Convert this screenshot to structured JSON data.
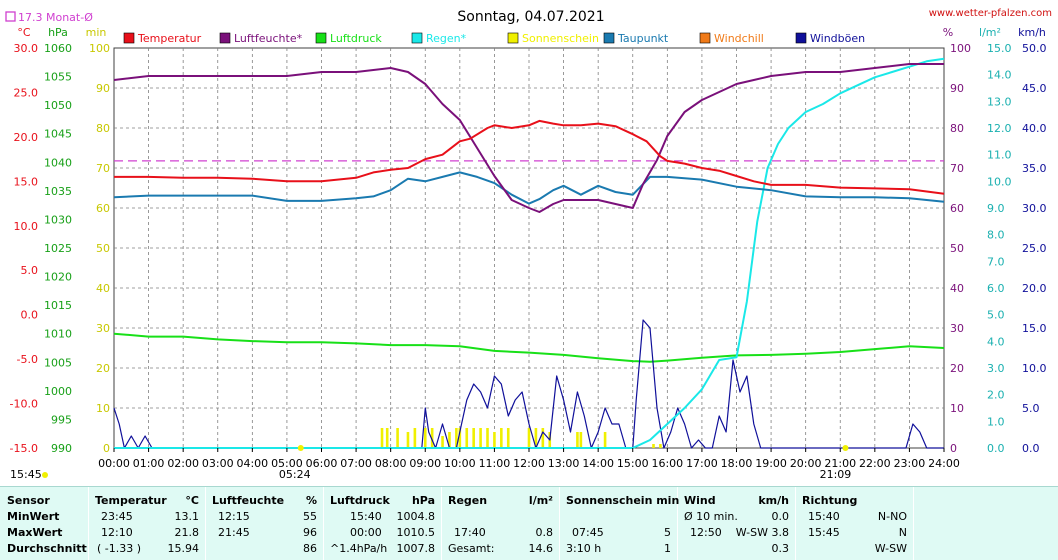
{
  "title": "Sonntag, 04.07.2021",
  "watermark": "www.wetter-pfalzen.com",
  "monthly_note": "17.3 Monat-Ø",
  "colors": {
    "temperature": "#e8101a",
    "humidity": "#7a107a",
    "pressure": "#18e018",
    "rain": "#1ae8e8",
    "sunshine": "#f0f000",
    "dewpoint": "#1a7ab0",
    "windchill": "#f07a18",
    "gusts": "#10109a",
    "grid": "#808080",
    "monthly_avg": "#d040d0"
  },
  "legend": [
    {
      "label": "Temperatur",
      "color": "#e8101a"
    },
    {
      "label": "Luftfeuchte*",
      "color": "#7a107a"
    },
    {
      "label": "Luftdruck",
      "color": "#18e018"
    },
    {
      "label": "Regen*",
      "color": "#1ae8e8"
    },
    {
      "label": "Sonnenschein",
      "color": "#f0f000"
    },
    {
      "label": "Taupunkt",
      "color": "#1a7ab0"
    },
    {
      "label": "Windchill",
      "color": "#f07a18"
    },
    {
      "label": "Windböen",
      "color": "#10109a"
    }
  ],
  "chart_data": {
    "type": "line",
    "x_ticks": [
      "00:00",
      "01:00",
      "02:00",
      "03:00",
      "04:00",
      "05:00",
      "06:00",
      "07:00",
      "08:00",
      "09:00",
      "10:00",
      "11:00",
      "12:00",
      "13:00",
      "14:00",
      "15:00",
      "16:00",
      "17:00",
      "18:00",
      "19:00",
      "20:00",
      "21:00",
      "22:00",
      "23:00",
      "24:00"
    ],
    "sunrise": "05:24",
    "sunset": "21:09",
    "start_label": "15:45",
    "axes": {
      "temperature": {
        "unit": "°C",
        "range": [
          -15,
          30
        ],
        "ticks": [
          "30.0",
          "25.0",
          "20.0",
          "15.0",
          "10.0",
          "5.0",
          "0.0",
          "-5.0",
          "-10.0",
          "-15.0"
        ]
      },
      "pressure": {
        "unit": "hPa",
        "range": [
          990,
          1060
        ],
        "ticks": [
          "1060",
          "1055",
          "1050",
          "1045",
          "1040",
          "1035",
          "1030",
          "1025",
          "1020",
          "1015",
          "1010",
          "1005",
          "1000",
          "995",
          "990"
        ]
      },
      "sun_min": {
        "unit": "min",
        "range": [
          0,
          100
        ],
        "ticks": [
          "100",
          "90",
          "80",
          "70",
          "60",
          "50",
          "40",
          "30",
          "20",
          "10",
          "0"
        ]
      },
      "humidity": {
        "unit": "%",
        "range": [
          0,
          100
        ],
        "ticks": [
          "100",
          "90",
          "80",
          "70",
          "60",
          "50",
          "40",
          "30",
          "20",
          "10",
          "0"
        ]
      },
      "rain": {
        "unit": "l/m²",
        "range": [
          0,
          15
        ],
        "ticks": [
          "15.0",
          "14.0",
          "13.0",
          "12.0",
          "11.0",
          "10.0",
          "9.0",
          "8.0",
          "7.0",
          "6.0",
          "5.0",
          "4.0",
          "3.0",
          "2.0",
          "1.0",
          "0.0"
        ]
      },
      "wind": {
        "unit": "km/h",
        "range": [
          0,
          50
        ],
        "ticks": [
          "50.0",
          "45.0",
          "40.0",
          "35.0",
          "30.0",
          "25.0",
          "20.0",
          "15.0",
          "10.0",
          "5.0",
          "0.0"
        ]
      }
    },
    "monthly_average_temperature": 17.3,
    "series": [
      {
        "name": "Temperatur",
        "axis": "temperature",
        "color": "#e8101a",
        "x": [
          0,
          1,
          2,
          3,
          4,
          5,
          6,
          7,
          7.5,
          8,
          8.5,
          9,
          9.5,
          10,
          10.3,
          10.8,
          11,
          11.5,
          12,
          12.3,
          12.7,
          13,
          13.5,
          14,
          14.5,
          15,
          15.4,
          15.8,
          16,
          16.5,
          17,
          17.5,
          18,
          18.5,
          19,
          20,
          21,
          22,
          23,
          24
        ],
        "y": [
          15.5,
          15.5,
          15.4,
          15.4,
          15.3,
          15,
          15,
          15.4,
          16,
          16.3,
          16.5,
          17.5,
          18,
          19.5,
          19.8,
          21,
          21.3,
          21,
          21.3,
          21.8,
          21.5,
          21.3,
          21.3,
          21.5,
          21.2,
          20.3,
          19.5,
          17.8,
          17.3,
          17,
          16.5,
          16.2,
          15.6,
          15,
          14.6,
          14.6,
          14.3,
          14.2,
          14.1,
          13.6
        ]
      },
      {
        "name": "Luftfeuchte*",
        "axis": "humidity",
        "color": "#7a107a",
        "x": [
          0,
          1,
          2,
          3,
          4,
          5,
          6,
          7,
          7.5,
          8,
          8.5,
          9,
          9.5,
          10,
          10.5,
          11,
          11.5,
          12,
          12.3,
          12.7,
          13,
          13.5,
          14,
          14.5,
          15,
          15.3,
          15.7,
          16,
          16.5,
          17,
          17.5,
          18,
          18.5,
          19,
          20,
          21,
          22,
          23,
          24
        ],
        "y": [
          92,
          93,
          93,
          93,
          93,
          93,
          94,
          94,
          94.5,
          95,
          94,
          91,
          86,
          82,
          75,
          68,
          62,
          60,
          59,
          61,
          62,
          62,
          62,
          61,
          60,
          66,
          72,
          78,
          84,
          87,
          89,
          91,
          92,
          93,
          94,
          94,
          95,
          96,
          96
        ]
      },
      {
        "name": "Luftdruck",
        "axis": "pressure",
        "color": "#18e018",
        "x": [
          0,
          1,
          2,
          3,
          4,
          5,
          6,
          7,
          8,
          9,
          10,
          11,
          12,
          13,
          14,
          15,
          15.5,
          16,
          17,
          18,
          19,
          20,
          21,
          22,
          23,
          24
        ],
        "y": [
          1010,
          1009.5,
          1009.5,
          1009,
          1008.7,
          1008.5,
          1008.5,
          1008.3,
          1008,
          1008,
          1007.8,
          1007,
          1006.7,
          1006.3,
          1005.7,
          1005.2,
          1005.1,
          1005.3,
          1005.8,
          1006.2,
          1006.3,
          1006.5,
          1006.8,
          1007.3,
          1007.8,
          1007.5
        ]
      },
      {
        "name": "Taupunkt",
        "axis": "temperature",
        "color": "#1a7ab0",
        "x": [
          0,
          1,
          2,
          3,
          4,
          5,
          6,
          7,
          7.5,
          8,
          8.5,
          9,
          9.5,
          10,
          10.5,
          11,
          11.5,
          12,
          12.3,
          12.7,
          13,
          13.5,
          14,
          14.5,
          15,
          15.5,
          16,
          17,
          18,
          19,
          20,
          21,
          22,
          23,
          24
        ],
        "y": [
          13.2,
          13.4,
          13.4,
          13.4,
          13.4,
          12.8,
          12.8,
          13.1,
          13.3,
          14,
          15.3,
          15,
          15.5,
          16,
          15.5,
          14.8,
          13.5,
          12.5,
          13,
          14,
          14.5,
          13.5,
          14.5,
          13.8,
          13.5,
          15.5,
          15.5,
          15.2,
          14.4,
          14,
          13.3,
          13.2,
          13.2,
          13.1,
          12.7
        ]
      },
      {
        "name": "Regen*",
        "axis": "rain",
        "color": "#1ae8e8",
        "x": [
          0,
          15,
          15.5,
          16,
          16.5,
          17,
          17.5,
          18,
          18.3,
          18.6,
          18.9,
          19.2,
          19.5,
          20,
          20.5,
          21,
          21.5,
          22,
          22.5,
          23,
          23.5,
          24
        ],
        "y": [
          0,
          0,
          0.3,
          0.9,
          1.5,
          2.2,
          3.3,
          3.4,
          5.5,
          8.5,
          10.5,
          11.4,
          12,
          12.6,
          12.9,
          13.3,
          13.6,
          13.9,
          14.1,
          14.3,
          14.5,
          14.6
        ]
      },
      {
        "name": "Windböen",
        "axis": "wind",
        "color": "#10109a",
        "x": [
          0,
          0.15,
          0.3,
          0.5,
          0.7,
          0.9,
          1.1,
          8.9,
          9.0,
          9.1,
          9.3,
          9.5,
          9.7,
          9.9,
          10.0,
          10.2,
          10.4,
          10.6,
          10.8,
          11.0,
          11.2,
          11.4,
          11.6,
          11.8,
          12.0,
          12.2,
          12.4,
          12.6,
          12.8,
          13.0,
          13.2,
          13.4,
          13.6,
          13.8,
          14.0,
          14.2,
          14.4,
          14.6,
          14.8,
          15.0,
          15.1,
          15.3,
          15.5,
          15.7,
          15.9,
          16.1,
          16.3,
          16.5,
          16.7,
          16.9,
          17.1,
          17.3,
          17.5,
          17.7,
          17.9,
          18.1,
          18.3,
          18.5,
          18.7,
          18.9,
          22.9,
          23.1,
          23.3,
          23.5,
          24
        ],
        "y": [
          5,
          3,
          0,
          1.5,
          0,
          1.5,
          0,
          0,
          5,
          2,
          0,
          3,
          0,
          0,
          2,
          6,
          8,
          7,
          5,
          9,
          8,
          4,
          6,
          7,
          3,
          0,
          2,
          1,
          9,
          6,
          2,
          7,
          4,
          0,
          2,
          5,
          3,
          3,
          0,
          0,
          6,
          16,
          15,
          5,
          0,
          2,
          5,
          3,
          0,
          1,
          0,
          0,
          4,
          2,
          11,
          7,
          9,
          3,
          0,
          0,
          0,
          3,
          2,
          0,
          0
        ]
      },
      {
        "name": "Sonnenschein",
        "axis": "sun_min",
        "color": "#f0f000",
        "x": [
          7.75,
          7.9,
          8.2,
          8.5,
          8.7,
          9.0,
          9.2,
          9.5,
          9.7,
          9.9,
          10.0,
          10.2,
          10.4,
          10.6,
          10.8,
          11.0,
          11.2,
          11.4,
          12.0,
          12.2,
          12.4,
          12.6,
          13.4,
          13.5,
          14.2,
          15.6,
          15.8
        ],
        "y": [
          5,
          5,
          5,
          4,
          5,
          5,
          5,
          3,
          4,
          5,
          5,
          5,
          5,
          5,
          5,
          4,
          5,
          5,
          5,
          5,
          5,
          4,
          4,
          4,
          4,
          1,
          1
        ]
      }
    ]
  },
  "table": {
    "headers": {
      "sensor": "Sensor",
      "temperature": "Temperatur",
      "temperature_unit": "°C",
      "humidity": "Luftfeuchte",
      "humidity_unit": "%",
      "pressure": "Luftdruck",
      "pressure_unit": "hPa",
      "rain": "Regen",
      "rain_unit": "l/m²",
      "sun": "Sonnenschein min",
      "wind": "Wind",
      "wind_unit": "km/h",
      "direction": "Richtung"
    },
    "rows": [
      {
        "label": "MinWert",
        "temp_time": "23:45",
        "temp_val": "13.1",
        "hum_time": "12:15",
        "hum_val": "55",
        "pres_time": "15:40",
        "pres_val": "1004.8",
        "rain_time": "",
        "rain_val": "",
        "sun_time": "",
        "sun_val": "",
        "wind_time": "Ø 10 min.",
        "wind_val": "0.0",
        "dir_time": "15:40",
        "dir_val": "N-NO"
      },
      {
        "label": "MaxWert",
        "temp_time": "12:10",
        "temp_val": "21.8",
        "hum_time": "21:45",
        "hum_val": "96",
        "pres_time": "00:00",
        "pres_val": "1010.5",
        "rain_time": "17:40",
        "rain_val": "0.8",
        "sun_time": "07:45",
        "sun_val": "5",
        "wind_time": "12:50",
        "wind_val": "W-SW 3.8",
        "dir_time": "15:45",
        "dir_val": "N"
      },
      {
        "label": "Durchschnitt",
        "temp_time": "( -1.33 )",
        "temp_val": "15.94",
        "hum_time": "",
        "hum_val": "86",
        "pres_time": "^1.4hPa/h",
        "pres_val": "1007.8",
        "rain_time": "Gesamt:",
        "rain_val": "14.6",
        "sun_time": "3:10 h",
        "sun_val": "1",
        "wind_time": "",
        "wind_val": "0.3",
        "dir_time": "",
        "dir_val": "W-SW"
      }
    ]
  }
}
